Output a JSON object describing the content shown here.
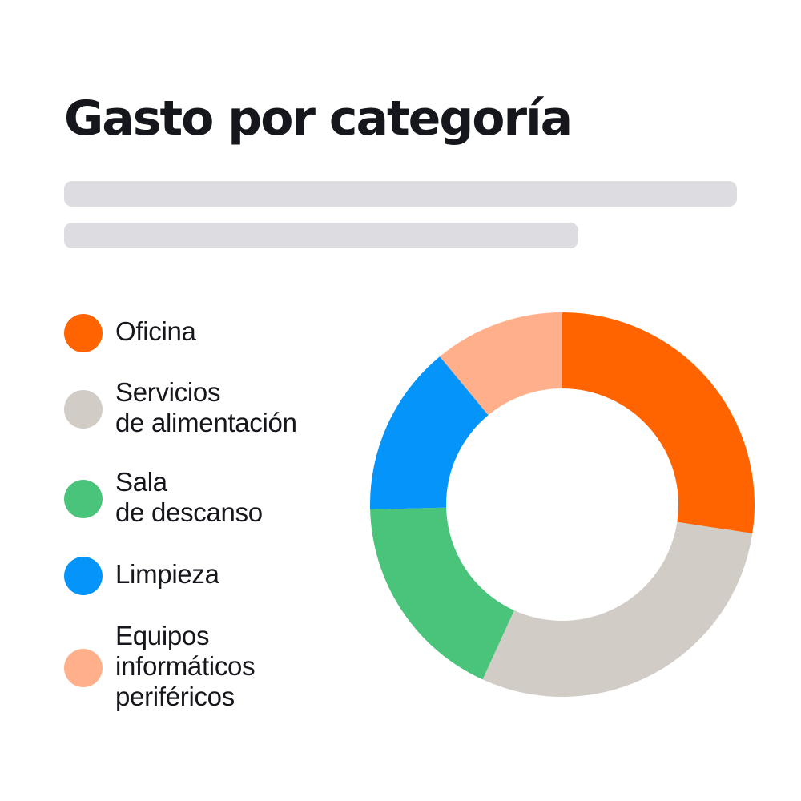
{
  "chart_data": {
    "type": "pie",
    "title": "Gasto por categoría",
    "donut": true,
    "categories": [
      "Oficina",
      "Servicios\nde alimentación",
      "Sala\nde descanso",
      "Limpieza",
      "Equipos\ninformáticos\nperiféricos"
    ],
    "values": [
      27.4,
      29.4,
      17.8,
      14.4,
      11.0
    ],
    "colors": [
      "#ff6400",
      "#d1ccc5",
      "#4bc47b",
      "#0595fa",
      "#ffb08a"
    ],
    "legend_position": "left"
  }
}
